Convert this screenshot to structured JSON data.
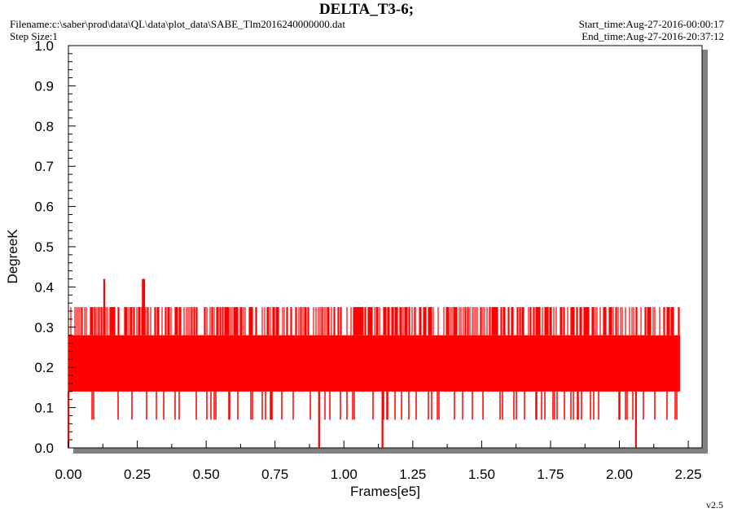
{
  "header": {
    "title": "DELTA_T3-6;",
    "filename": "Filename:c:\\saber\\prod\\data\\QL\\data\\plot_data\\SABE_Tlm2016240000000.dat",
    "step_size": "Step Size:1",
    "start_time": "Start_time:Aug-27-2016-00:00:17",
    "end_time": "End_time:Aug-27-2016-20:37:12"
  },
  "footer": {
    "version": "v2.5"
  },
  "colors": {
    "series": "#ff0000",
    "shadow": "#808080",
    "axis": "#000000",
    "background": "#ffffff"
  },
  "chart_data": {
    "type": "line",
    "xlabel": "Frames[e5]",
    "ylabel": "DegreeK",
    "xlim": [
      0,
      2.3
    ],
    "ylim": [
      0,
      1.0
    ],
    "xticks": [
      "0.00",
      "0.25",
      "0.50",
      "0.75",
      "1.00",
      "1.25",
      "1.50",
      "1.75",
      "2.00",
      "2.25"
    ],
    "yticks": [
      "0.0",
      "0.1",
      "0.2",
      "0.3",
      "0.4",
      "0.5",
      "0.6",
      "0.7",
      "0.8",
      "0.9",
      "1.0"
    ],
    "grid": false,
    "series": [
      {
        "x_range": [
          0,
          2.22
        ],
        "baseline_band": [
          0.14,
          0.28
        ],
        "frequent_high": 0.35,
        "occasional_low": 0.07,
        "spikes": [
          {
            "x": 0.0,
            "y": 0.0
          },
          {
            "x": 0.13,
            "y": 0.42
          },
          {
            "x": 0.27,
            "y": 0.42
          },
          {
            "x": 0.275,
            "y": 0.42
          },
          {
            "x": 0.91,
            "y": 0.0
          },
          {
            "x": 1.14,
            "y": 0.0
          },
          {
            "x": 2.06,
            "y": 0.0
          }
        ]
      }
    ]
  }
}
